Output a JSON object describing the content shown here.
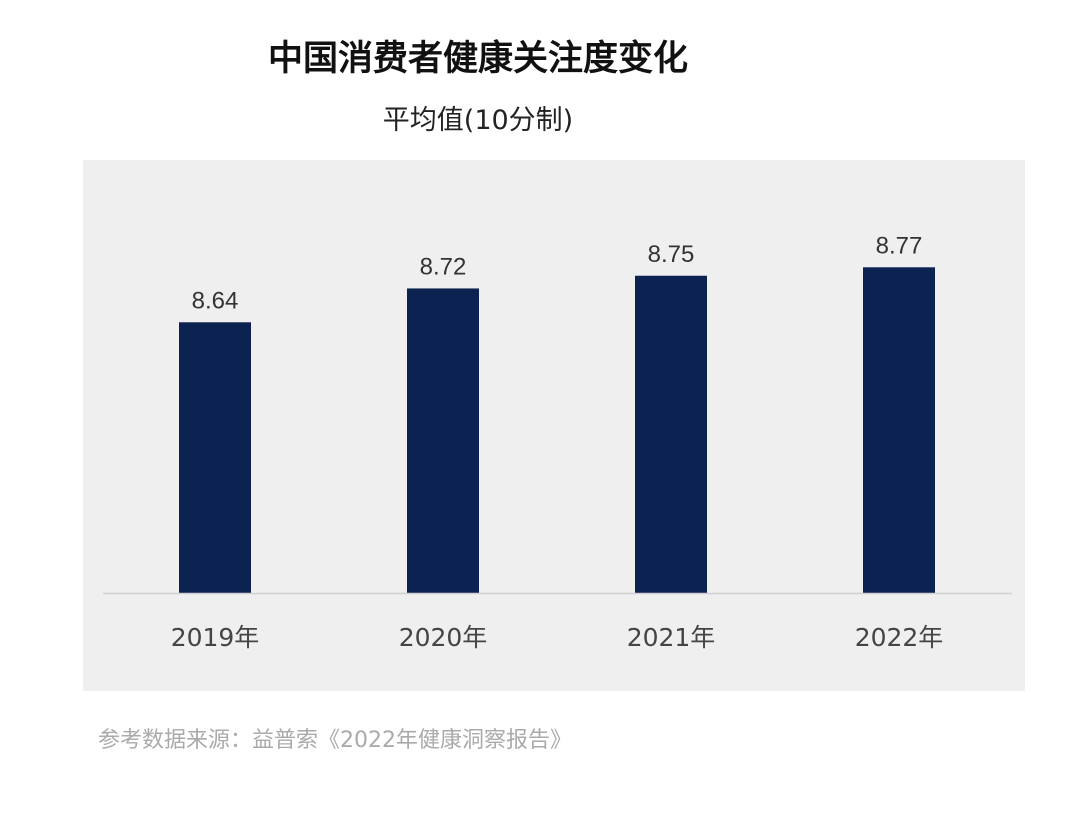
{
  "chart_data": {
    "type": "bar",
    "title": "中国消费者健康关注度变化",
    "subtitle": "平均值(10分制)",
    "categories": [
      "2019年",
      "2020年",
      "2021年",
      "2022年"
    ],
    "values": [
      8.64,
      8.72,
      8.75,
      8.77
    ],
    "data_labels": [
      "8.64",
      "8.72",
      "8.75",
      "8.77"
    ],
    "xlabel": "",
    "ylabel": "",
    "ylim": [
      8.0,
      9.0
    ],
    "grid": false,
    "y_axis_visible": false,
    "colors": {
      "bar": "#0c2250",
      "panel": "#efefef",
      "baseline": "#d0d0d0"
    }
  },
  "footer": {
    "source": "参考数据来源：益普索《2022年健康洞察报告》"
  }
}
